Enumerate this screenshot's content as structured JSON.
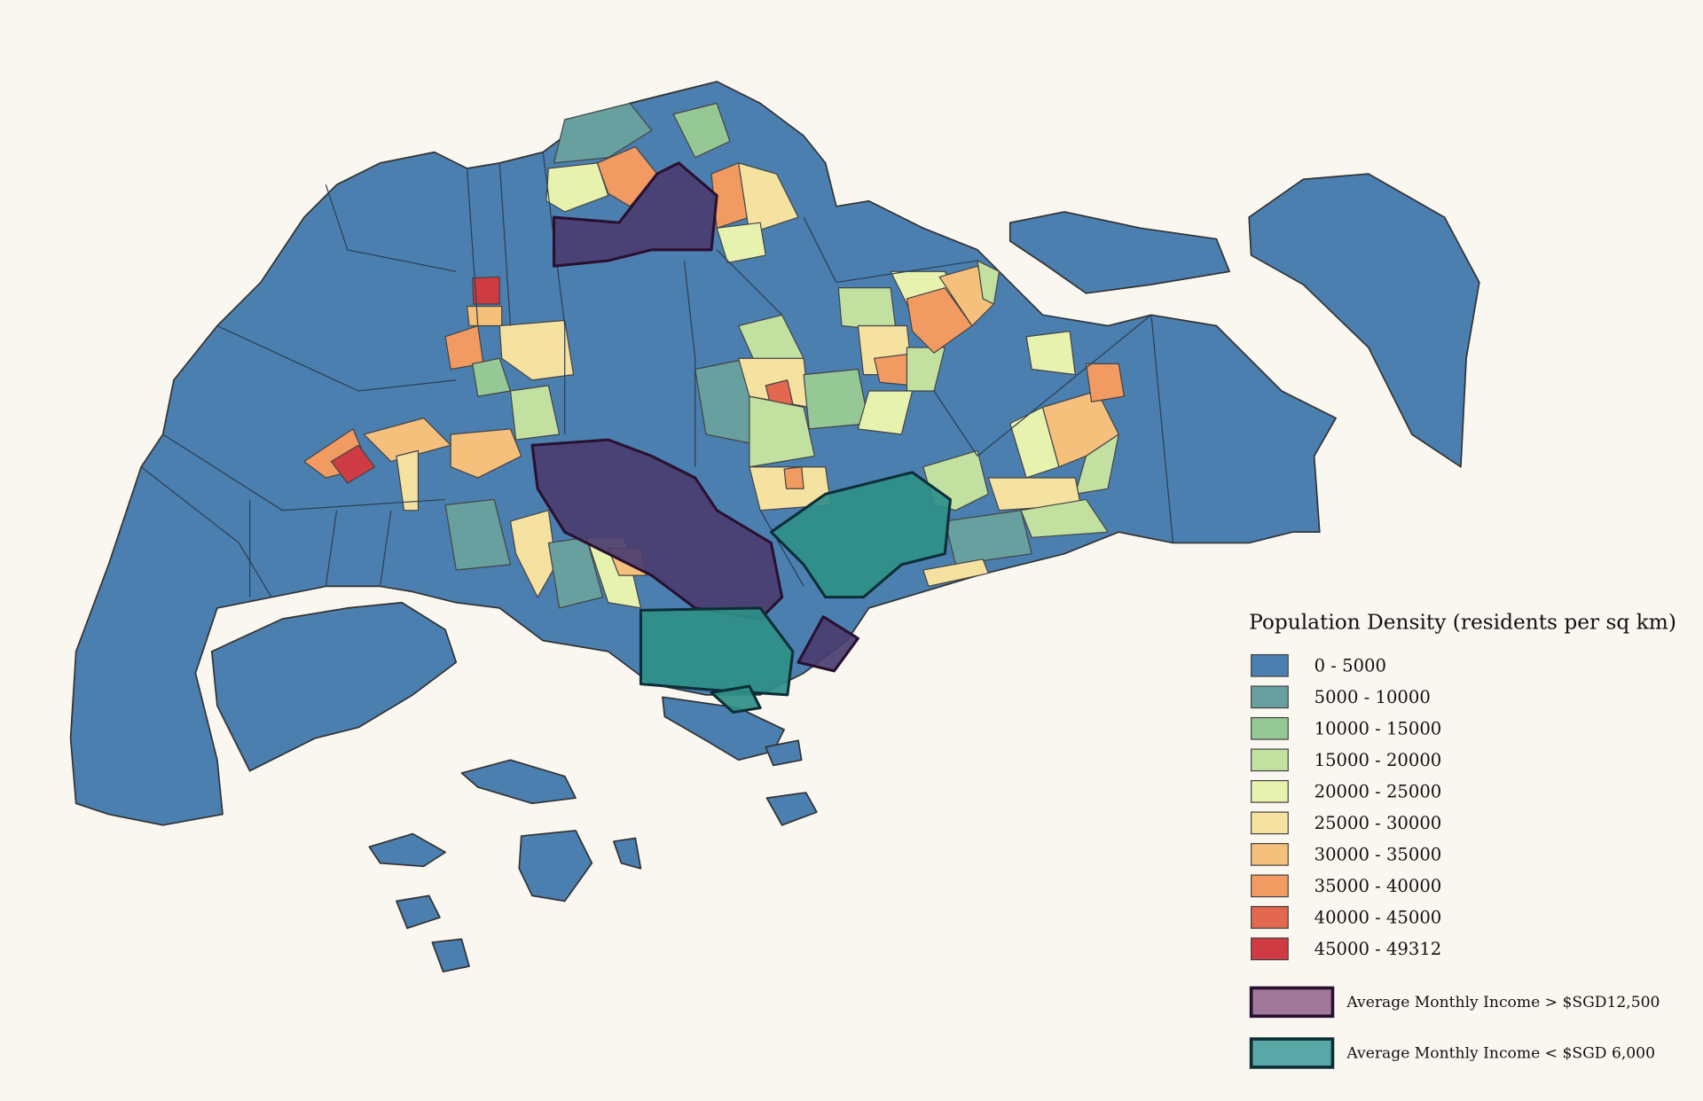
{
  "legend": {
    "title": "Population Density (residents per sq km)",
    "items": [
      {
        "label": "0 - 5000",
        "color": "#4a7fb0"
      },
      {
        "label": "5000 - 10000",
        "color": "#67a09f"
      },
      {
        "label": "10000 - 15000",
        "color": "#96c895"
      },
      {
        "label": "15000 - 20000",
        "color": "#c2e0a0"
      },
      {
        "label": "20000 - 25000",
        "color": "#e6f2ae"
      },
      {
        "label": "25000 - 30000",
        "color": "#f6e2a0"
      },
      {
        "label": "30000 - 35000",
        "color": "#f5bf7c"
      },
      {
        "label": "35000 - 40000",
        "color": "#f19a61"
      },
      {
        "label": "40000 - 45000",
        "color": "#e2684f"
      },
      {
        "label": "45000 - 49312",
        "color": "#cf3b43"
      }
    ]
  },
  "overlays": [
    {
      "label": "Average Monthly Income > $SGD12,500",
      "fill": "#a0789a",
      "stroke": "#2a1030",
      "area": "#4a3d70"
    },
    {
      "label": "Average Monthly Income < $SGD 6,000",
      "fill": "#58a8a8",
      "stroke": "#0d2e36",
      "area": "#2e8f88"
    }
  ]
}
